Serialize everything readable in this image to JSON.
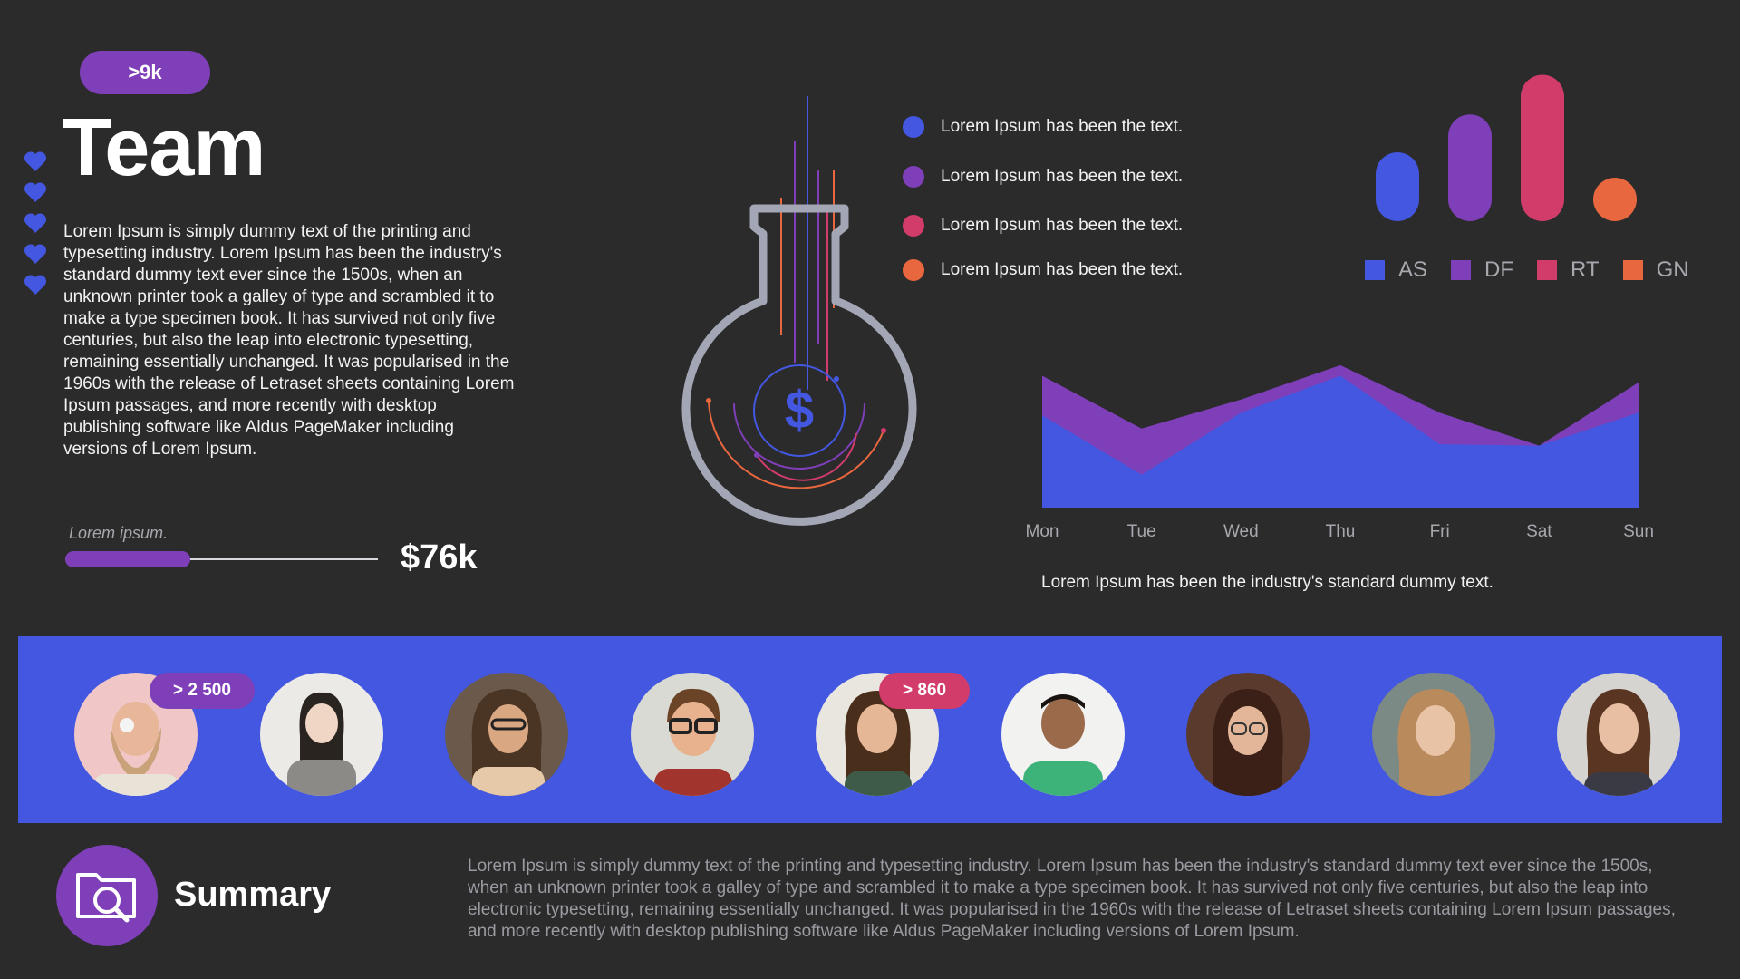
{
  "header": {
    "badge": ">9k",
    "title": "Team",
    "intro": "Lorem Ipsum is simply dummy text of the printing and typesetting industry. Lorem Ipsum has been the industry's standard dummy text ever since the 1500s, when an unknown printer took a galley of type and scrambled it to make a type specimen book. It has survived not only five centuries, but also the leap into electronic typesetting, remaining essentially unchanged. It was popularised in the 1960s with the release of Letraset sheets containing Lorem Ipsum passages, and more recently with desktop publishing software like Aldus PageMaker including versions of Lorem Ipsum."
  },
  "progress": {
    "label": "Lorem ipsum.",
    "value_text": "$76k",
    "fraction": 0.4
  },
  "flask": {
    "symbol": "$"
  },
  "legend": [
    {
      "text": "Lorem Ipsum has been the text.",
      "color": "#4457e0"
    },
    {
      "text": "Lorem Ipsum has been the text.",
      "color": "#7e3fb8"
    },
    {
      "text": "Lorem Ipsum has been the text.",
      "color": "#d23c6b"
    },
    {
      "text": "Lorem Ipsum has been the text.",
      "color": "#e9673f"
    }
  ],
  "chart_data": [
    {
      "type": "bar",
      "categories": [
        "AS",
        "DF",
        "RT",
        "GN"
      ],
      "values": [
        40,
        62,
        85,
        10
      ],
      "colors": [
        "#4457e0",
        "#7e3fb8",
        "#d23c6b",
        "#e9673f"
      ],
      "ylim": [
        0,
        100
      ],
      "legend": "bottom"
    },
    {
      "type": "area",
      "categories": [
        "Mon",
        "Tue",
        "Wed",
        "Thu",
        "Fri",
        "Sat",
        "Sun"
      ],
      "series": [
        {
          "values": [
            70,
            25,
            72,
            100,
            48,
            47,
            72
          ],
          "color": "#4457e0"
        },
        {
          "values": [
            100,
            60,
            82,
            108,
            72,
            47,
            95
          ],
          "color": "#7e3fb8"
        }
      ],
      "ylim": [
        0,
        110
      ],
      "caption": "Lorem Ipsum has been the industry's standard dummy text."
    }
  ],
  "people": {
    "badges": [
      "> 2 500",
      "> 860"
    ],
    "badge_colors": [
      "#7e3fb8",
      "#d23c6b"
    ]
  },
  "summary": {
    "title": "Summary",
    "text": "Lorem Ipsum is simply dummy text of the printing and typesetting industry. Lorem Ipsum has been the industry's standard dummy text ever since the 1500s, when an unknown printer took a galley of type and scrambled it to make a type specimen book. It has survived not only five centuries, but also the leap into electronic typesetting, remaining essentially unchanged. It was popularised in the 1960s with the release of Letraset sheets containing Lorem Ipsum passages, and more recently with desktop publishing software like Aldus PageMaker including versions of Lorem Ipsum."
  },
  "colors": {
    "background": "#2b2b2c",
    "blue": "#4457e0",
    "purple": "#7e3fb8",
    "pink": "#d23c6b",
    "orange": "#e9673f"
  }
}
